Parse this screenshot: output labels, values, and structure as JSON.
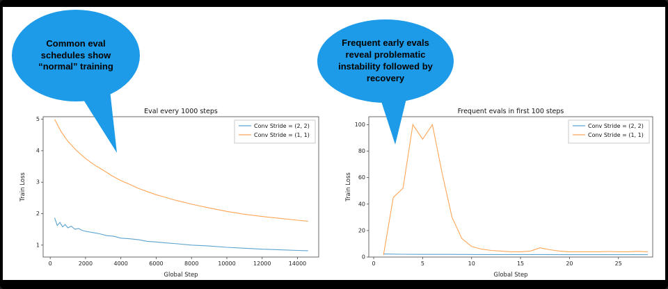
{
  "slide": {
    "accent_color": "#1e9be8",
    "bubbles": [
      {
        "text": "Common eval schedules show “normal” training"
      },
      {
        "text": "Frequent early evals reveal problematic instability followed by recovery"
      }
    ]
  },
  "chart_data": [
    {
      "type": "line",
      "title": "Eval every 1000 steps",
      "xlabel": "Global Step",
      "ylabel": "Train Loss",
      "xlim": [
        -400,
        15200
      ],
      "ylim": [
        0.62,
        5.08
      ],
      "xticks": [
        0,
        2000,
        4000,
        6000,
        8000,
        10000,
        12000,
        14000
      ],
      "yticks": [
        1,
        2,
        3,
        4,
        5
      ],
      "grid": false,
      "legend_position": "upper right",
      "series": [
        {
          "name": "Conv Stride =  (2, 2)",
          "color": "#5aa2cf",
          "x": [
            250,
            400,
            550,
            700,
            850,
            1000,
            1200,
            1400,
            1600,
            1800,
            2000,
            2400,
            2800,
            3200,
            3600,
            4000,
            4500,
            5000,
            5500,
            6000,
            6500,
            7000,
            8000,
            9000,
            10000,
            11000,
            12000,
            13000,
            14000,
            14600
          ],
          "y": [
            1.87,
            1.62,
            1.72,
            1.58,
            1.65,
            1.55,
            1.6,
            1.5,
            1.53,
            1.47,
            1.44,
            1.4,
            1.36,
            1.3,
            1.28,
            1.22,
            1.2,
            1.17,
            1.12,
            1.1,
            1.07,
            1.05,
            1.0,
            0.97,
            0.93,
            0.9,
            0.87,
            0.85,
            0.83,
            0.82
          ]
        },
        {
          "name": "Conv Stride =  (1, 1)",
          "color": "#ffa556",
          "x": [
            250,
            600,
            1000,
            1500,
            2000,
            2500,
            3000,
            3500,
            4000,
            4500,
            5000,
            5500,
            6000,
            6500,
            7000,
            7500,
            8000,
            9000,
            10000,
            11000,
            12000,
            13000,
            14000,
            14600
          ],
          "y": [
            5.0,
            4.62,
            4.3,
            4.0,
            3.75,
            3.55,
            3.38,
            3.2,
            3.05,
            2.93,
            2.8,
            2.7,
            2.6,
            2.52,
            2.44,
            2.37,
            2.3,
            2.18,
            2.07,
            1.98,
            1.91,
            1.85,
            1.79,
            1.76
          ]
        }
      ]
    },
    {
      "type": "line",
      "title": "Frequent evals in first 100 steps",
      "xlabel": "Global Step",
      "ylabel": "Train Loss",
      "xlim": [
        -0.5,
        28.5
      ],
      "ylim": [
        0,
        106
      ],
      "xticks": [
        0,
        5,
        10,
        15,
        20,
        25
      ],
      "yticks": [
        0,
        20,
        40,
        60,
        80,
        100
      ],
      "grid": false,
      "legend_position": "upper right",
      "series": [
        {
          "name": "Conv Stride =  (2, 2)",
          "color": "#5aa2cf",
          "x": [
            1,
            3,
            5,
            8,
            11,
            14,
            17,
            20,
            23,
            26,
            28
          ],
          "y": [
            2.3,
            2.1,
            2.0,
            2.0,
            1.9,
            1.9,
            1.9,
            1.8,
            1.8,
            1.8,
            1.8
          ]
        },
        {
          "name": "Conv Stride =  (1, 1)",
          "color": "#ffa556",
          "x": [
            1,
            2,
            3,
            4,
            5,
            6,
            7,
            8,
            9,
            10,
            11,
            12,
            13,
            14,
            15,
            16,
            17,
            18,
            19,
            20,
            21,
            22,
            23,
            24,
            25,
            26,
            27,
            28
          ],
          "y": [
            1.5,
            45,
            52,
            100,
            89,
            100,
            63,
            30,
            14,
            8,
            6,
            5,
            4.5,
            4,
            4,
            4.5,
            7,
            5.5,
            4.5,
            4,
            4,
            4,
            4,
            4.2,
            4,
            4,
            4.3,
            4
          ]
        }
      ]
    }
  ]
}
